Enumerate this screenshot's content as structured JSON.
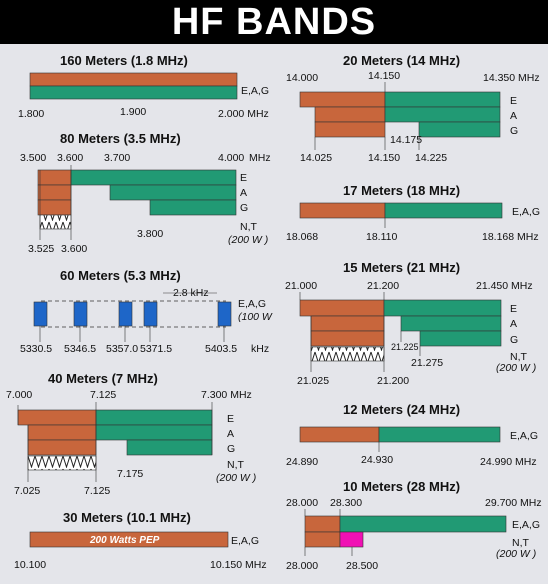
{
  "title": "HF BANDS",
  "colors": {
    "orange": "#c8663c",
    "green": "#219a74",
    "blue": "#1e66c8",
    "pink": "#f010b4",
    "background": "#e4e5ea"
  },
  "bands": {
    "b160": {
      "title": "160 Meters (1.8 MHz)",
      "t1": "1.800",
      "t2": "1.900",
      "t3": "2.000 MHz",
      "cls": "E,A,G"
    },
    "b80": {
      "title": "80 Meters (3.5 MHz)",
      "t1": "3.500",
      "t2": "3.600",
      "t3": "3.700",
      "t4": "4.000",
      "mhz": "MHz",
      "e": "E",
      "a": "A",
      "g": "G",
      "nt": "N,T",
      "w": "(200 W )",
      "b1": "3.800",
      "b2": "3.525",
      "b3": "3.600"
    },
    "b60": {
      "title": "60 Meters (5.3 MHz)",
      "khz_step": "2.8 kHz",
      "cls": "E,A,G",
      "w": "(100 W",
      "c1": "5330.5",
      "c2": "5346.5",
      "c3": "5357.0",
      "c4": "5371.5",
      "c5": "5403.5",
      "khz": "kHz"
    },
    "b40": {
      "title": "40 Meters (7 MHz)",
      "t1": "7.000",
      "t2": "7.125",
      "t3": "7.300  MHz",
      "e": "E",
      "a": "A",
      "g": "G",
      "nt": "N,T",
      "w": "(200 W )",
      "b1": "7.175",
      "b2": "7.025",
      "b3": "7.125"
    },
    "b30": {
      "title": "30 Meters (10.1 MHz)",
      "pep": "200 Watts PEP",
      "cls": "E,A,G",
      "b1": "10.100",
      "b2": "10.150 MHz"
    },
    "b20": {
      "title": "20 Meters (14 MHz)",
      "t1": "14.000",
      "t2": "14.150",
      "t3": "14.350 MHz",
      "e": "E",
      "a": "A",
      "g": "G",
      "m1": "14.175",
      "b1": "14.025",
      "b2": "14.150",
      "b3": "14.225"
    },
    "b17": {
      "title": "17 Meters (18 MHz)",
      "cls": "E,A,G",
      "b1": "18.068",
      "b2": "18.110",
      "b3": "18.168 MHz"
    },
    "b15": {
      "title": "15 Meters (21 MHz)",
      "t1": "21.000",
      "t2": "21.200",
      "t3": "21.450 MHz",
      "e": "E",
      "a": "A",
      "g": "G",
      "m1": "21.225",
      "m2": "21.275",
      "nt": "N,T",
      "w": "(200 W )",
      "b1": "21.025",
      "b2": "21.200"
    },
    "b12": {
      "title": "12 Meters (24 MHz)",
      "cls": "E,A,G",
      "b1": "24.890",
      "b2": "24.930",
      "b3": "24.990 MHz"
    },
    "b10": {
      "title": "10 Meters (28 MHz)",
      "t1": "28.000",
      "t2": "28.300",
      "t3": "29.700 MHz",
      "cls": "E,A,G",
      "nt": "N,T",
      "w": "(200 W )",
      "b1": "28.000",
      "b2": "28.500"
    }
  }
}
